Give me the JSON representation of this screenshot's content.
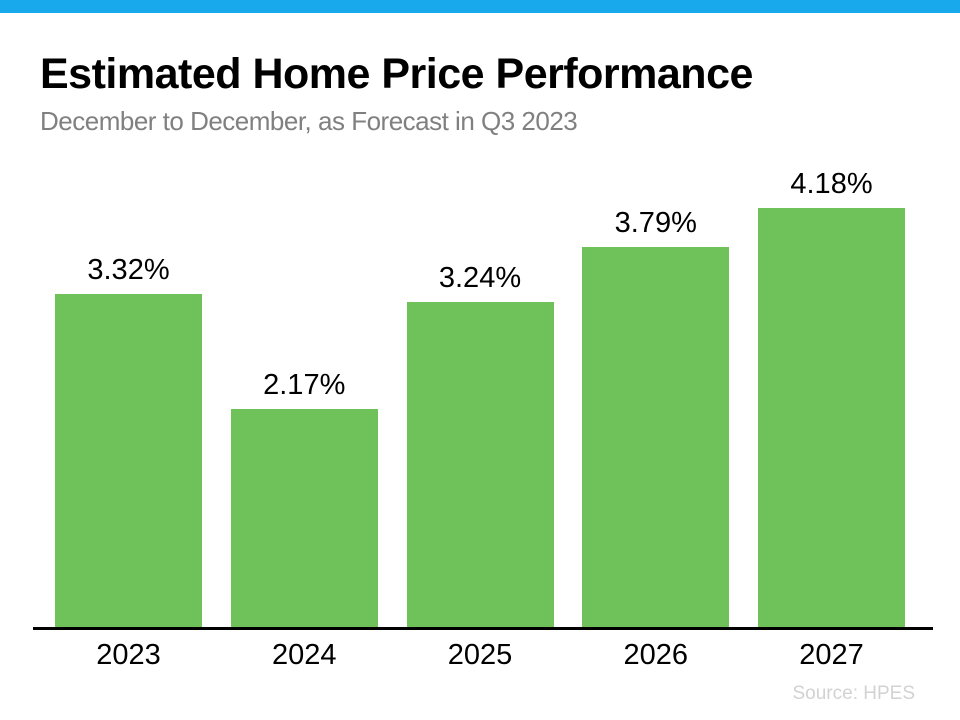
{
  "page": {
    "accent_color": "#18a8ec",
    "title": "Estimated Home Price Performance",
    "subtitle": "December to December, as Forecast in Q3 2023",
    "source_note": "Source: HPES"
  },
  "chart_data": {
    "type": "bar",
    "title": "Estimated Home Price Performance",
    "subtitle": "December to December, as Forecast in Q3 2023",
    "categories": [
      "2023",
      "2024",
      "2025",
      "2026",
      "2027"
    ],
    "values": [
      3.32,
      2.17,
      3.24,
      3.79,
      4.18
    ],
    "data_labels": [
      "3.32%",
      "2.17%",
      "3.24%",
      "3.79%",
      "4.18%"
    ],
    "unit": "percent",
    "bar_color": "#6fc259",
    "ylim": [
      0,
      4.7
    ],
    "grid": false,
    "legend": false,
    "x_axis_line_color": "#000000",
    "source": "Source: HPES"
  }
}
